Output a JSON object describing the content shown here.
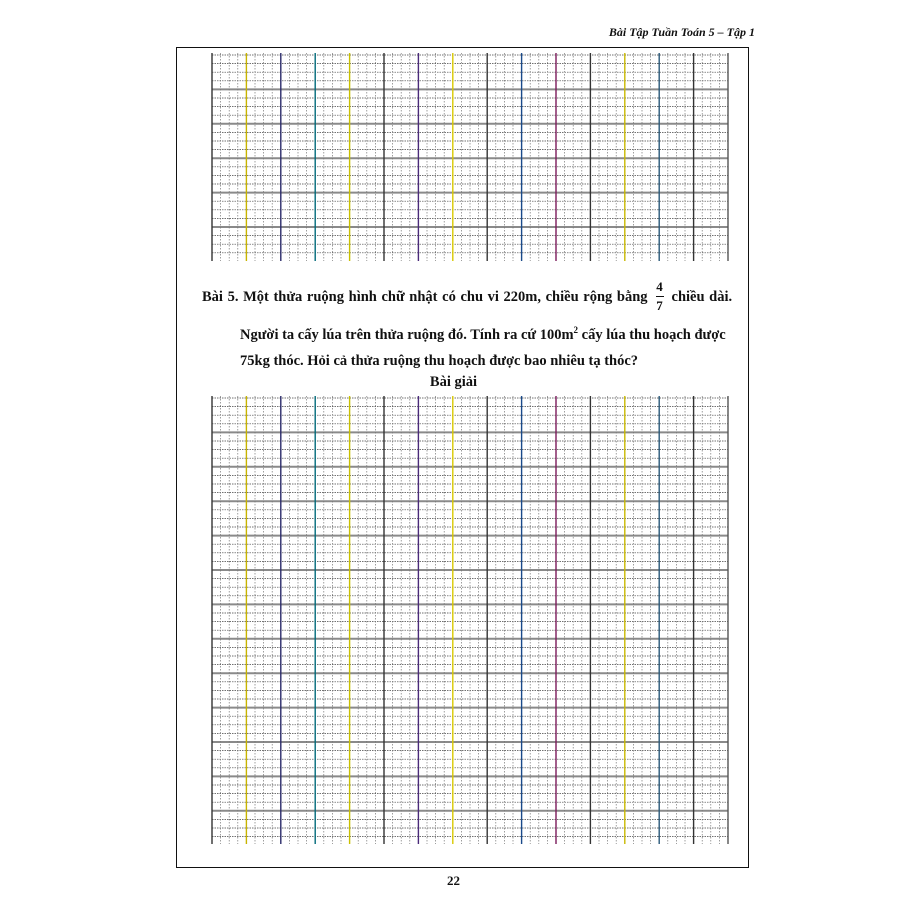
{
  "header": {
    "title": "Bài Tập Tuần Toán 5 – Tập 1"
  },
  "problem": {
    "label": "Bài 5.",
    "line1_before": "Một thửa ruộng hình chữ nhật có chu vi 220m, chiều rộng bằng",
    "fraction": {
      "numerator": "4",
      "denominator": "7"
    },
    "line1_after": "chiều dài.",
    "line2_before": "Người ta cấy lúa trên thửa ruộng đó. Tính ra cứ 100m",
    "line2_sup": "2",
    "line2_after": " cấy lúa thu hoạch được",
    "line3": "75kg thóc. Hỏi cả thửa ruộng thu hoạch được bao nhiêu tạ thóc?"
  },
  "solution": {
    "heading": "Bài giải"
  },
  "page_number": "22",
  "colors": {
    "grid_minor": "#555555",
    "grid_major_horizontal": "#888888",
    "border": "#111111"
  }
}
